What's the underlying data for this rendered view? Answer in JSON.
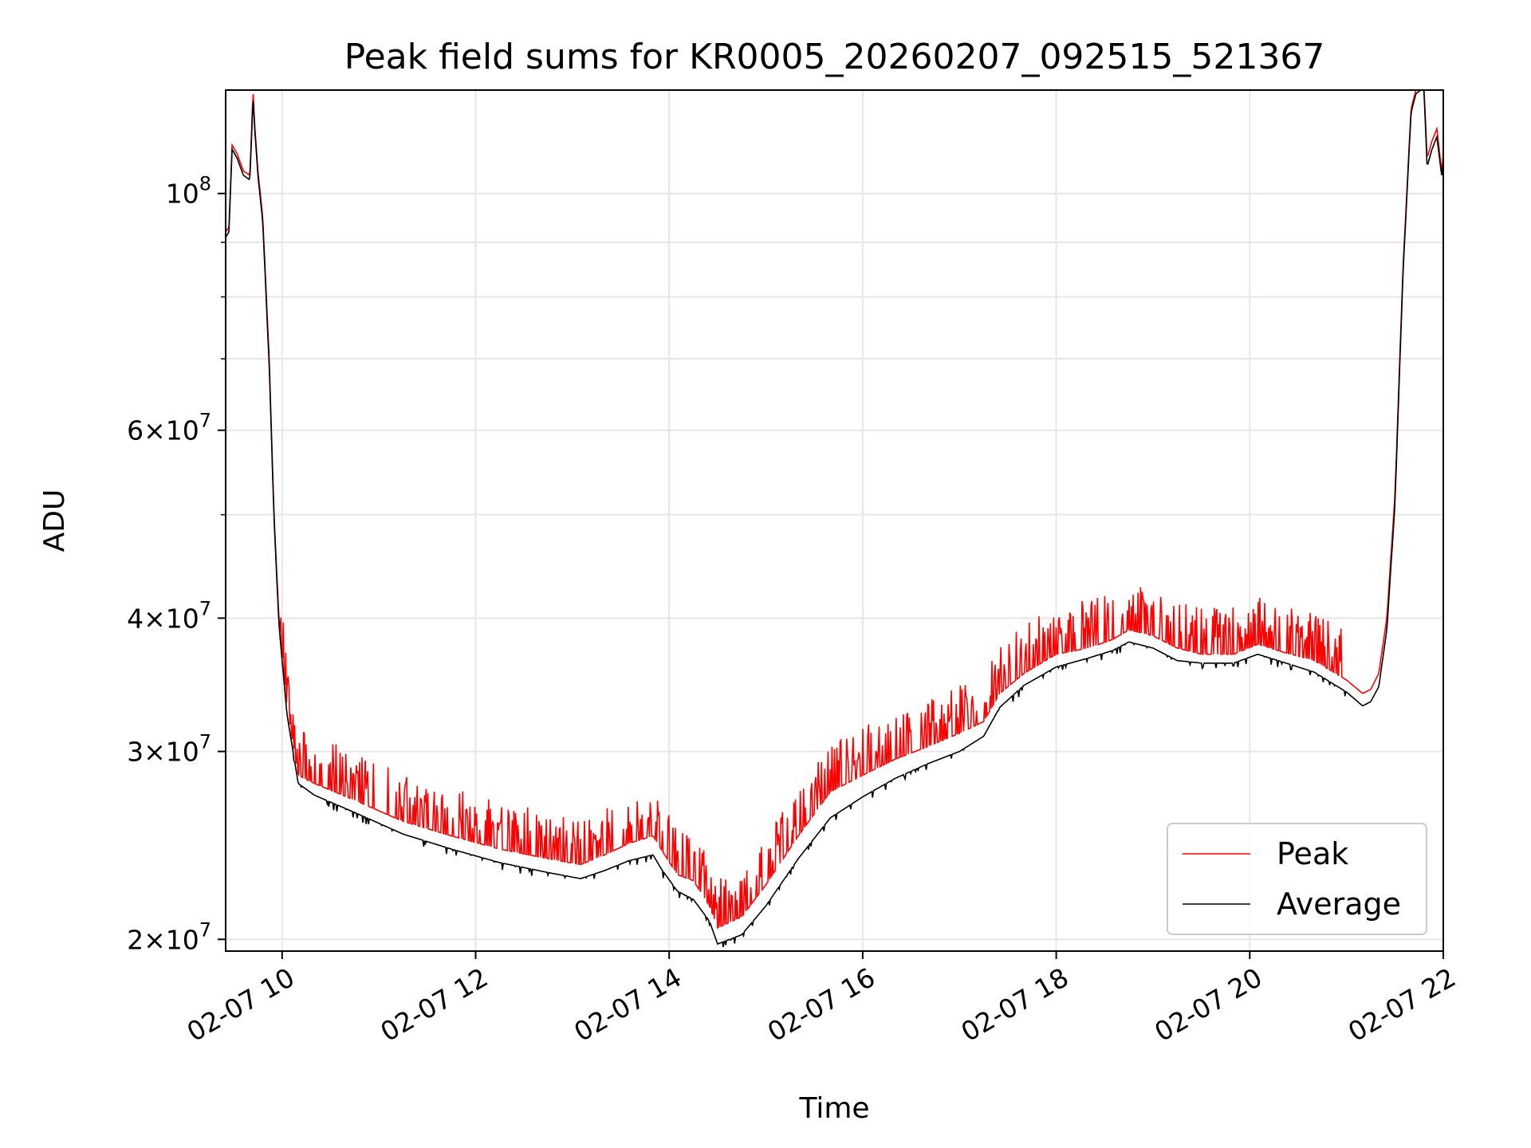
{
  "chart_data": {
    "type": "line",
    "title": "Peak field sums for KR0005_20260207_092515_521367",
    "xlabel": "Time",
    "ylabel": "ADU",
    "yscale": "log",
    "ylim": [
      19500000,
      125000000
    ],
    "xlim": [
      "2026-02-07 09:25",
      "2026-02-07 22:00"
    ],
    "grid": true,
    "legend_position": "lower right",
    "x_tick_labels": [
      "02-07 10",
      "02-07 12",
      "02-07 14",
      "02-07 16",
      "02-07 18",
      "02-07 20",
      "02-07 22"
    ],
    "y_tick_labels": [
      {
        "value": 100000000,
        "mantissa": "",
        "exponent": "8"
      },
      {
        "value": 60000000,
        "mantissa": "6",
        "exponent": "7"
      },
      {
        "value": 40000000,
        "mantissa": "4",
        "exponent": "7"
      },
      {
        "value": 30000000,
        "mantissa": "3",
        "exponent": "7"
      },
      {
        "value": 20000000,
        "mantissa": "2",
        "exponent": "7"
      }
    ],
    "series": [
      {
        "name": "Peak",
        "color": "#ff0000",
        "x": [
          "2026-02-07 09:25",
          "2026-02-07 09:27",
          "2026-02-07 09:29",
          "2026-02-07 09:32",
          "2026-02-07 09:36",
          "2026-02-07 09:40",
          "2026-02-07 09:42",
          "2026-02-07 09:43",
          "2026-02-07 09:45",
          "2026-02-07 09:48",
          "2026-02-07 09:52",
          "2026-02-07 09:55",
          "2026-02-07 09:58",
          "2026-02-07 10:03",
          "2026-02-07 10:10",
          "2026-02-07 10:20",
          "2026-02-07 10:45",
          "2026-02-07 11:15",
          "2026-02-07 11:45",
          "2026-02-07 12:15",
          "2026-02-07 12:45",
          "2026-02-07 13:05",
          "2026-02-07 13:20",
          "2026-02-07 13:35",
          "2026-02-07 13:50",
          "2026-02-07 13:55",
          "2026-02-07 14:05",
          "2026-02-07 14:15",
          "2026-02-07 14:25",
          "2026-02-07 14:30",
          "2026-02-07 14:45",
          "2026-02-07 15:00",
          "2026-02-07 15:20",
          "2026-02-07 15:40",
          "2026-02-07 16:00",
          "2026-02-07 16:20",
          "2026-02-07 16:40",
          "2026-02-07 17:00",
          "2026-02-07 17:15",
          "2026-02-07 17:25",
          "2026-02-07 17:40",
          "2026-02-07 18:00",
          "2026-02-07 18:20",
          "2026-02-07 18:35",
          "2026-02-07 18:45",
          "2026-02-07 19:00",
          "2026-02-07 19:15",
          "2026-02-07 19:30",
          "2026-02-07 19:50",
          "2026-02-07 20:05",
          "2026-02-07 20:20",
          "2026-02-07 20:40",
          "2026-02-07 21:00",
          "2026-02-07 21:10",
          "2026-02-07 21:15",
          "2026-02-07 21:20",
          "2026-02-07 21:25",
          "2026-02-07 21:30",
          "2026-02-07 21:35",
          "2026-02-07 21:40",
          "2026-02-07 21:43",
          "2026-02-07 21:46",
          "2026-02-07 21:48",
          "2026-02-07 21:50",
          "2026-02-07 21:53",
          "2026-02-07 21:56",
          "2026-02-07 21:59",
          "2026-02-07 22:00"
        ],
        "y": [
          92000000,
          93000000,
          111000000,
          109000000,
          105000000,
          104000000,
          125000000,
          116000000,
          105000000,
          95000000,
          70000000,
          50000000,
          40000000,
          33000000,
          28500000,
          28000000,
          27000000,
          25800000,
          25000000,
          24300000,
          23800000,
          23500000,
          24000000,
          24600000,
          25000000,
          24300000,
          23000000,
          22700000,
          21500000,
          20500000,
          21000000,
          22500000,
          25000000,
          27500000,
          28500000,
          29500000,
          30300000,
          31200000,
          32000000,
          34000000,
          35500000,
          37000000,
          37500000,
          38200000,
          39000000,
          38500000,
          37500000,
          37000000,
          37000000,
          37800000,
          37200000,
          36500000,
          35000000,
          34000000,
          34300000,
          35500000,
          40000000,
          52000000,
          85000000,
          120000000,
          125000000,
          126000000,
          126000000,
          108000000,
          112000000,
          115000000,
          105000000,
          109000000
        ]
      },
      {
        "name": "Average",
        "color": "#000000",
        "x": [
          "2026-02-07 09:25",
          "2026-02-07 09:27",
          "2026-02-07 09:29",
          "2026-02-07 09:32",
          "2026-02-07 09:36",
          "2026-02-07 09:40",
          "2026-02-07 09:42",
          "2026-02-07 09:43",
          "2026-02-07 09:45",
          "2026-02-07 09:48",
          "2026-02-07 09:52",
          "2026-02-07 09:55",
          "2026-02-07 09:58",
          "2026-02-07 10:03",
          "2026-02-07 10:10",
          "2026-02-07 10:20",
          "2026-02-07 10:45",
          "2026-02-07 11:15",
          "2026-02-07 11:45",
          "2026-02-07 12:15",
          "2026-02-07 12:45",
          "2026-02-07 13:05",
          "2026-02-07 13:20",
          "2026-02-07 13:35",
          "2026-02-07 13:50",
          "2026-02-07 13:55",
          "2026-02-07 14:05",
          "2026-02-07 14:15",
          "2026-02-07 14:25",
          "2026-02-07 14:30",
          "2026-02-07 14:45",
          "2026-02-07 15:00",
          "2026-02-07 15:20",
          "2026-02-07 15:40",
          "2026-02-07 16:00",
          "2026-02-07 16:20",
          "2026-02-07 16:40",
          "2026-02-07 17:00",
          "2026-02-07 17:15",
          "2026-02-07 17:25",
          "2026-02-07 17:40",
          "2026-02-07 18:00",
          "2026-02-07 18:20",
          "2026-02-07 18:35",
          "2026-02-07 18:45",
          "2026-02-07 19:00",
          "2026-02-07 19:15",
          "2026-02-07 19:30",
          "2026-02-07 19:50",
          "2026-02-07 20:05",
          "2026-02-07 20:20",
          "2026-02-07 20:40",
          "2026-02-07 21:00",
          "2026-02-07 21:10",
          "2026-02-07 21:15",
          "2026-02-07 21:20",
          "2026-02-07 21:25",
          "2026-02-07 21:30",
          "2026-02-07 21:35",
          "2026-02-07 21:40",
          "2026-02-07 21:43",
          "2026-02-07 21:46",
          "2026-02-07 21:48",
          "2026-02-07 21:50",
          "2026-02-07 21:53",
          "2026-02-07 21:56",
          "2026-02-07 21:59",
          "2026-02-07 22:00"
        ],
        "y": [
          91000000,
          92000000,
          110000000,
          108000000,
          104000000,
          103000000,
          123000000,
          115000000,
          104000000,
          94000000,
          69000000,
          49500000,
          39500000,
          32500000,
          28000000,
          27300000,
          26300000,
          25100000,
          24300000,
          23600000,
          23100000,
          22800000,
          23200000,
          23700000,
          24000000,
          23300000,
          22200000,
          21800000,
          20800000,
          19800000,
          20200000,
          21500000,
          23800000,
          26000000,
          27200000,
          28300000,
          29200000,
          30000000,
          31000000,
          33000000,
          34600000,
          36000000,
          36700000,
          37300000,
          38000000,
          37500000,
          36500000,
          36300000,
          36300000,
          37000000,
          36400000,
          35600000,
          34100000,
          33100000,
          33400000,
          34500000,
          39000000,
          51000000,
          84000000,
          119000000,
          124000000,
          125000000,
          125000000,
          106000000,
          110000000,
          113000000,
          104000000,
          107000000
        ]
      }
    ]
  }
}
